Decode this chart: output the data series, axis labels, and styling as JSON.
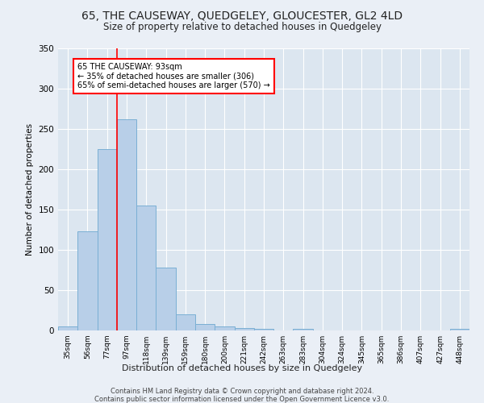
{
  "title": "65, THE CAUSEWAY, QUEDGELEY, GLOUCESTER, GL2 4LD",
  "subtitle": "Size of property relative to detached houses in Quedgeley",
  "xlabel": "Distribution of detached houses by size in Quedgeley",
  "ylabel": "Number of detached properties",
  "bar_labels": [
    "35sqm",
    "56sqm",
    "77sqm",
    "97sqm",
    "118sqm",
    "139sqm",
    "159sqm",
    "180sqm",
    "200sqm",
    "221sqm",
    "242sqm",
    "263sqm",
    "283sqm",
    "304sqm",
    "324sqm",
    "345sqm",
    "365sqm",
    "386sqm",
    "407sqm",
    "427sqm",
    "448sqm"
  ],
  "bar_values": [
    5,
    123,
    225,
    262,
    155,
    78,
    20,
    8,
    5,
    3,
    2,
    0,
    2,
    0,
    0,
    0,
    0,
    0,
    0,
    0,
    2
  ],
  "bar_color": "#b8cfe8",
  "bar_edge_color": "#7aafd4",
  "red_line_x": 3.0,
  "annotation_line1": "65 THE CAUSEWAY: 93sqm",
  "annotation_line2": "← 35% of detached houses are smaller (306)",
  "annotation_line3": "65% of semi-detached houses are larger (570) →",
  "background_color": "#eaeff6",
  "plot_bg_color": "#dce6f0",
  "footer_line1": "Contains HM Land Registry data © Crown copyright and database right 2024.",
  "footer_line2": "Contains public sector information licensed under the Open Government Licence v3.0.",
  "ylim": [
    0,
    350
  ],
  "yticks": [
    0,
    50,
    100,
    150,
    200,
    250,
    300,
    350
  ]
}
